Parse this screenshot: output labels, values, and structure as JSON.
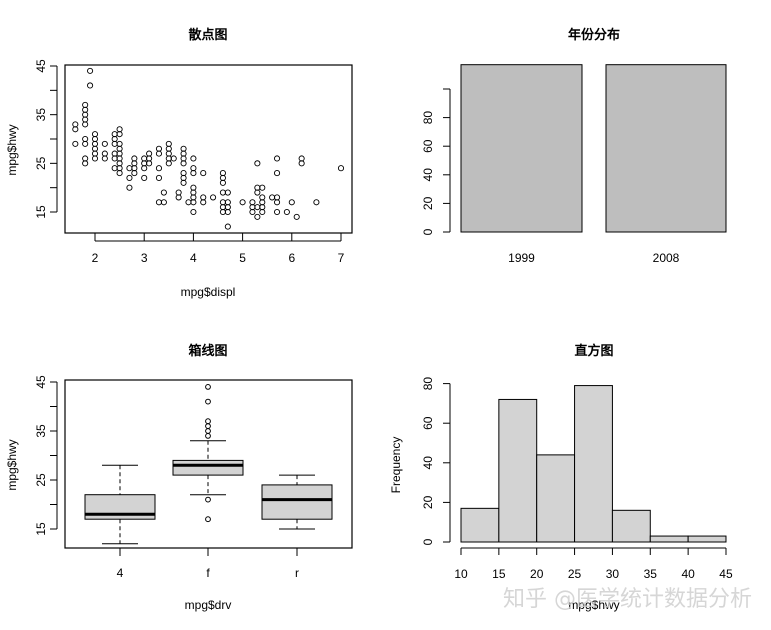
{
  "titles": {
    "scatter": "散点图",
    "bar": "年份分布",
    "box": "箱线图",
    "hist": "直方图"
  },
  "labels": {
    "scatter_x": "mpg$displ",
    "scatter_y": "mpg$hwy",
    "box_x": "mpg$drv",
    "box_y": "mpg$hwy",
    "hist_x": "mpg$hwy",
    "hist_y": "Frequency"
  },
  "watermark": "知乎 @医学统计数据分析",
  "colors": {
    "bar_fill": "#bebebe",
    "box_fill": "#d3d3d3",
    "hist_fill": "#d3d3d3",
    "axis": "#000000"
  },
  "chart_data": [
    {
      "type": "scatter",
      "title": "散点图",
      "xlabel": "mpg$displ",
      "ylabel": "mpg$hwy",
      "xticks": [
        2,
        3,
        4,
        5,
        6,
        7
      ],
      "yticks": [
        15,
        20,
        25,
        30,
        35,
        40,
        45
      ],
      "ytick_labels": [
        "15",
        "",
        "25",
        "",
        "35",
        "",
        "45"
      ],
      "xlim": [
        1.6,
        7.0
      ],
      "ylim": [
        12,
        44
      ],
      "points": [
        [
          1.6,
          33
        ],
        [
          1.6,
          32
        ],
        [
          1.6,
          29
        ],
        [
          1.8,
          29
        ],
        [
          1.8,
          30
        ],
        [
          1.8,
          26
        ],
        [
          1.8,
          25
        ],
        [
          1.8,
          33
        ],
        [
          1.8,
          34
        ],
        [
          1.8,
          35
        ],
        [
          1.8,
          36
        ],
        [
          1.8,
          37
        ],
        [
          1.9,
          44
        ],
        [
          1.9,
          41
        ],
        [
          2.0,
          31
        ],
        [
          2.0,
          30
        ],
        [
          2.0,
          29
        ],
        [
          2.0,
          28
        ],
        [
          2.0,
          27
        ],
        [
          2.0,
          26
        ],
        [
          2.2,
          29
        ],
        [
          2.2,
          27
        ],
        [
          2.2,
          26
        ],
        [
          2.4,
          31
        ],
        [
          2.4,
          30
        ],
        [
          2.4,
          29
        ],
        [
          2.4,
          27
        ],
        [
          2.4,
          26
        ],
        [
          2.4,
          24
        ],
        [
          2.5,
          32
        ],
        [
          2.5,
          31
        ],
        [
          2.5,
          29
        ],
        [
          2.5,
          28
        ],
        [
          2.5,
          27
        ],
        [
          2.5,
          26
        ],
        [
          2.5,
          25
        ],
        [
          2.5,
          24
        ],
        [
          2.5,
          23
        ],
        [
          2.7,
          24
        ],
        [
          2.7,
          22
        ],
        [
          2.7,
          20
        ],
        [
          2.8,
          26
        ],
        [
          2.8,
          25
        ],
        [
          2.8,
          24
        ],
        [
          2.8,
          23
        ],
        [
          3.0,
          26
        ],
        [
          3.0,
          25
        ],
        [
          3.0,
          24
        ],
        [
          3.0,
          22
        ],
        [
          3.1,
          27
        ],
        [
          3.1,
          26
        ],
        [
          3.1,
          25
        ],
        [
          3.3,
          28
        ],
        [
          3.3,
          27
        ],
        [
          3.3,
          24
        ],
        [
          3.3,
          22
        ],
        [
          3.3,
          17
        ],
        [
          3.4,
          19
        ],
        [
          3.4,
          17
        ],
        [
          3.5,
          29
        ],
        [
          3.5,
          28
        ],
        [
          3.5,
          27
        ],
        [
          3.5,
          26
        ],
        [
          3.5,
          25
        ],
        [
          3.6,
          26
        ],
        [
          3.7,
          19
        ],
        [
          3.7,
          18
        ],
        [
          3.8,
          28
        ],
        [
          3.8,
          27
        ],
        [
          3.8,
          26
        ],
        [
          3.8,
          25
        ],
        [
          3.8,
          23
        ],
        [
          3.8,
          22
        ],
        [
          3.8,
          21
        ],
        [
          3.9,
          17
        ],
        [
          4.0,
          26
        ],
        [
          4.0,
          24
        ],
        [
          4.0,
          23
        ],
        [
          4.0,
          20
        ],
        [
          4.0,
          19
        ],
        [
          4.0,
          18
        ],
        [
          4.0,
          17
        ],
        [
          4.0,
          15
        ],
        [
          4.2,
          23
        ],
        [
          4.2,
          18
        ],
        [
          4.2,
          17
        ],
        [
          4.4,
          18
        ],
        [
          4.6,
          23
        ],
        [
          4.6,
          22
        ],
        [
          4.6,
          21
        ],
        [
          4.6,
          19
        ],
        [
          4.6,
          17
        ],
        [
          4.6,
          16
        ],
        [
          4.6,
          15
        ],
        [
          4.7,
          19
        ],
        [
          4.7,
          17
        ],
        [
          4.7,
          16
        ],
        [
          4.7,
          15
        ],
        [
          4.7,
          12
        ],
        [
          5.0,
          17
        ],
        [
          5.2,
          17
        ],
        [
          5.2,
          16
        ],
        [
          5.2,
          15
        ],
        [
          5.3,
          25
        ],
        [
          5.3,
          20
        ],
        [
          5.3,
          19
        ],
        [
          5.3,
          16
        ],
        [
          5.3,
          14
        ],
        [
          5.4,
          20
        ],
        [
          5.4,
          18
        ],
        [
          5.4,
          17
        ],
        [
          5.4,
          16
        ],
        [
          5.4,
          15
        ],
        [
          5.6,
          18
        ],
        [
          5.7,
          26
        ],
        [
          5.7,
          23
        ],
        [
          5.7,
          18
        ],
        [
          5.7,
          17
        ],
        [
          5.7,
          15
        ],
        [
          5.9,
          15
        ],
        [
          6.0,
          17
        ],
        [
          6.1,
          14
        ],
        [
          6.2,
          26
        ],
        [
          6.2,
          25
        ],
        [
          6.5,
          17
        ],
        [
          7.0,
          24
        ]
      ]
    },
    {
      "type": "bar",
      "title": "年份分布",
      "categories": [
        "1999",
        "2008"
      ],
      "values": [
        117,
        117
      ],
      "yticks": [
        0,
        20,
        40,
        60,
        80,
        100
      ],
      "ytick_labels": [
        "0",
        "20",
        "40",
        "60",
        "80",
        ""
      ],
      "ylim": [
        0,
        117
      ]
    },
    {
      "type": "box",
      "title": "箱线图",
      "xlabel": "mpg$drv",
      "ylabel": "mpg$hwy",
      "categories": [
        "4",
        "f",
        "r"
      ],
      "yticks": [
        15,
        20,
        25,
        30,
        35,
        40,
        45
      ],
      "ytick_labels": [
        "15",
        "",
        "25",
        "",
        "35",
        "",
        "45"
      ],
      "ylim": [
        12,
        44
      ],
      "boxes": [
        {
          "name": "4",
          "min": 12,
          "q1": 17,
          "median": 18,
          "q3": 22,
          "max": 28,
          "outliers": []
        },
        {
          "name": "f",
          "min": 22,
          "q1": 26,
          "median": 28,
          "q3": 29,
          "max": 33,
          "outliers": [
            44,
            41,
            37,
            36,
            35,
            34,
            21,
            17
          ]
        },
        {
          "name": "r",
          "min": 15,
          "q1": 17,
          "median": 21,
          "q3": 24,
          "max": 26,
          "outliers": []
        }
      ]
    },
    {
      "type": "bar",
      "subtype": "histogram",
      "title": "直方图",
      "xlabel": "mpg$hwy",
      "ylabel": "Frequency",
      "bins": [
        10,
        15,
        20,
        25,
        30,
        35,
        40,
        45
      ],
      "values": [
        17,
        72,
        44,
        79,
        16,
        3,
        3
      ],
      "xticks": [
        10,
        15,
        20,
        25,
        30,
        35,
        40,
        45
      ],
      "yticks": [
        0,
        20,
        40,
        60,
        80
      ],
      "ylim": [
        0,
        80
      ]
    }
  ]
}
